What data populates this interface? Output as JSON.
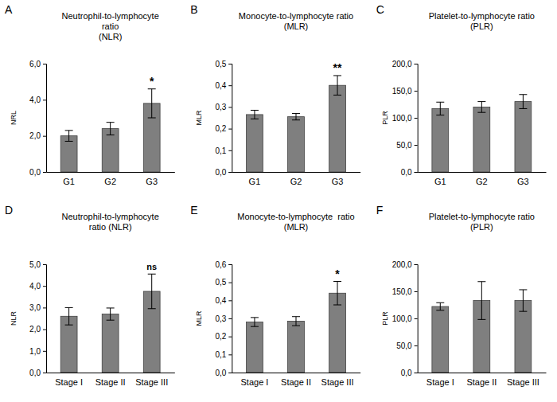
{
  "chart_data": [
    {
      "type": "bar",
      "panel_label": "A",
      "title": [
        "Neutrophil-to-lymphocyte",
        "ratio",
        "(NLR)"
      ],
      "y_label": "NRL",
      "categories": [
        "G1",
        "G2",
        "G3"
      ],
      "values": [
        2.0,
        2.4,
        3.8
      ],
      "errors": [
        0.3,
        0.35,
        0.8
      ],
      "annotations": [
        null,
        null,
        "*"
      ],
      "color": "#7f7f7f",
      "ylim": [
        0,
        6
      ],
      "yticks": [
        {
          "value": 0,
          "label": "0,0"
        },
        {
          "value": 2,
          "label": "2,0"
        },
        {
          "value": 4,
          "label": "4,0"
        },
        {
          "value": 6,
          "label": "6,0"
        }
      ]
    },
    {
      "type": "bar",
      "panel_label": "B",
      "title": [
        "Monocyte-to-lymphocyte ratio",
        "(MLR)"
      ],
      "y_label": "MLR",
      "categories": [
        "G1",
        "G2",
        "G3"
      ],
      "values": [
        0.265,
        0.255,
        0.4
      ],
      "errors": [
        0.02,
        0.015,
        0.045
      ],
      "annotations": [
        null,
        null,
        "**"
      ],
      "color": "#7f7f7f",
      "ylim": [
        0,
        0.5
      ],
      "yticks": [
        {
          "value": 0,
          "label": "0,0"
        },
        {
          "value": 0.1,
          "label": "0,1"
        },
        {
          "value": 0.2,
          "label": "0,2"
        },
        {
          "value": 0.3,
          "label": "0,3"
        },
        {
          "value": 0.4,
          "label": "0,4"
        },
        {
          "value": 0.5,
          "label": "0,5"
        }
      ]
    },
    {
      "type": "bar",
      "panel_label": "C",
      "title": [
        "Platelet-to-lymphocyte ratio",
        "(PLR)"
      ],
      "y_label": "PLR",
      "categories": [
        "G1",
        "G2",
        "G3"
      ],
      "values": [
        117,
        120,
        130
      ],
      "errors": [
        12,
        10,
        13
      ],
      "annotations": [
        null,
        null,
        null
      ],
      "color": "#7f7f7f",
      "ylim": [
        0,
        200
      ],
      "yticks": [
        {
          "value": 0,
          "label": "0,0"
        },
        {
          "value": 50,
          "label": "50,0"
        },
        {
          "value": 100,
          "label": "100,0"
        },
        {
          "value": 150,
          "label": "150,0"
        },
        {
          "value": 200,
          "label": "200,0"
        }
      ]
    },
    {
      "type": "bar",
      "panel_label": "D",
      "title": [
        "Neutrophil-to-lymphocyte",
        "ratio (NLR)"
      ],
      "y_label": "NLR",
      "categories": [
        "Stage I",
        "Stage II",
        "Stage III"
      ],
      "values": [
        2.6,
        2.7,
        3.75
      ],
      "errors": [
        0.4,
        0.28,
        0.8
      ],
      "annotations": [
        null,
        null,
        "ns"
      ],
      "color": "#7f7f7f",
      "ylim": [
        0,
        5
      ],
      "yticks": [
        {
          "value": 0,
          "label": "0,0"
        },
        {
          "value": 1,
          "label": "1,0"
        },
        {
          "value": 2,
          "label": "2,0"
        },
        {
          "value": 3,
          "label": "3,0"
        },
        {
          "value": 4,
          "label": "4,0"
        },
        {
          "value": 5,
          "label": "5,0"
        }
      ]
    },
    {
      "type": "bar",
      "panel_label": "E",
      "title": [
        "Monocyte-to-lymphocyte  ratio",
        "(MLR)"
      ],
      "y_label": "MLR",
      "categories": [
        "Stage I",
        "Stage II",
        "Stage III"
      ],
      "values": [
        0.28,
        0.285,
        0.44
      ],
      "errors": [
        0.025,
        0.025,
        0.065
      ],
      "annotations": [
        null,
        null,
        "*"
      ],
      "color": "#7f7f7f",
      "ylim": [
        0,
        0.6
      ],
      "yticks": [
        {
          "value": 0,
          "label": "0,0"
        },
        {
          "value": 0.1,
          "label": "0,1"
        },
        {
          "value": 0.2,
          "label": "0,2"
        },
        {
          "value": 0.3,
          "label": "0,3"
        },
        {
          "value": 0.4,
          "label": "0,4"
        },
        {
          "value": 0.5,
          "label": "0,5"
        },
        {
          "value": 0.6,
          "label": "0,6"
        }
      ]
    },
    {
      "type": "bar",
      "panel_label": "F",
      "title": [
        "Platelet-to-lymphocyte ratio",
        "(PLR)"
      ],
      "y_label": "PLR",
      "categories": [
        "Stage I",
        "Stage II",
        "Stage III"
      ],
      "values": [
        122,
        133,
        133
      ],
      "errors": [
        7,
        35,
        20
      ],
      "annotations": [
        null,
        null,
        null
      ],
      "color": "#7f7f7f",
      "ylim": [
        0,
        200
      ],
      "yticks": [
        {
          "value": 0,
          "label": "0,0"
        },
        {
          "value": 50,
          "label": "50,0"
        },
        {
          "value": 100,
          "label": "100,0"
        },
        {
          "value": 150,
          "label": "150,0"
        },
        {
          "value": 200,
          "label": "200,0"
        }
      ]
    }
  ]
}
